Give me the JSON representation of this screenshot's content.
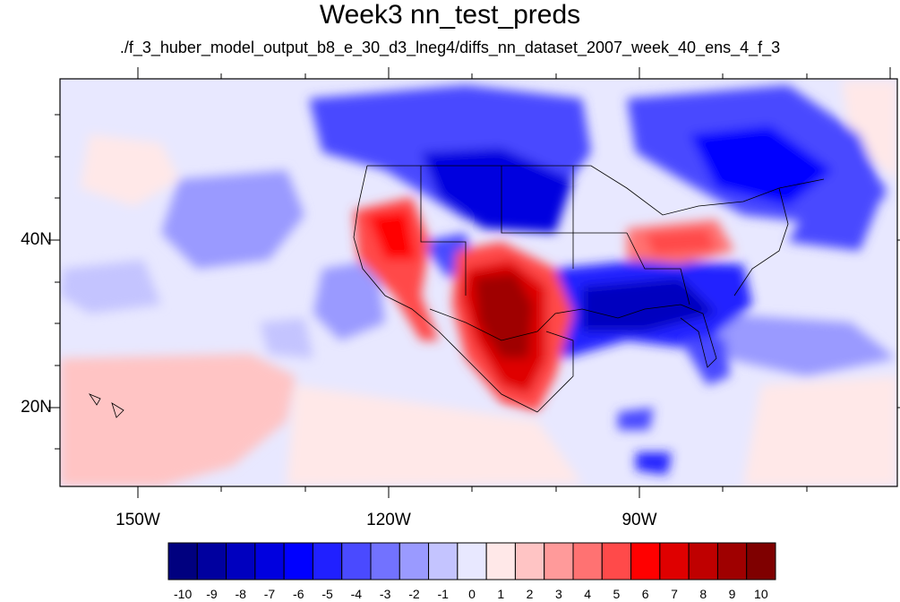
{
  "title": "Week3 nn_test_preds",
  "subtitle": "./f_3_huber_model_output_b8_e_30_d3_lneg4/diffs_nn_dataset_2007_week_40_ens_4_f_3",
  "map": {
    "lon_labels": [
      "150W",
      "120W",
      "90W"
    ],
    "lat_labels": [
      "40N",
      "20N"
    ]
  },
  "colorbar": {
    "labels": [
      "-10",
      "-9",
      "-8",
      "-7",
      "-6",
      "-5",
      "-4",
      "-3",
      "-2",
      "-1",
      "0",
      "1",
      "2",
      "3",
      "4",
      "5",
      "6",
      "7",
      "8",
      "9",
      "10"
    ],
    "colors": [
      "#00007f",
      "#00009f",
      "#0000bf",
      "#0000df",
      "#0000ff",
      "#2020ff",
      "#4a4aff",
      "#7272ff",
      "#9a9aff",
      "#c4c4ff",
      "#e8e8ff",
      "#ffe8e8",
      "#ffc4c4",
      "#ff9a9a",
      "#ff7272",
      "#ff4a4a",
      "#ff0000",
      "#df0000",
      "#bf0000",
      "#9f0000",
      "#7f0000"
    ]
  }
}
